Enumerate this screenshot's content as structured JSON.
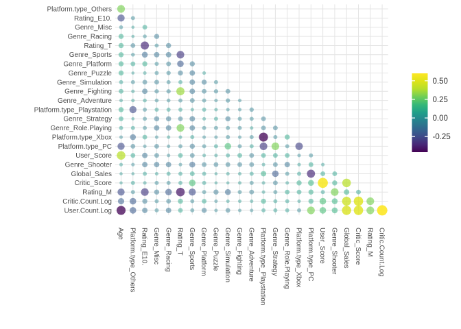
{
  "figure": {
    "background": "#ffffff",
    "title": ""
  },
  "chart_data": {
    "type": "heatmap",
    "subtype": "correlation-bubble-matrix",
    "triangle": "lower",
    "title": "",
    "xlabel": "",
    "ylabel": "",
    "grid": true,
    "legend_position": "right",
    "x_labels": [
      "Age",
      "Platform.type_Others",
      "Rating_E10.",
      "Genre_Misc",
      "Genre_Racing",
      "Rating_T",
      "Genre_Sports",
      "Genre_Platform",
      "Genre_Puzzle",
      "Genre_Simulation",
      "Genre_Fighting",
      "Genre_Adventure",
      "Platform.type_Playstation",
      "Genre_Strategy",
      "Genre_Role.Playing",
      "Platform.type_Xbox",
      "Platform.type_PC",
      "User_Score",
      "Genre_Shooter",
      "Global_Sales",
      "Critic_Score",
      "Rating_M",
      "Critic.Count.Log"
    ],
    "y_labels": [
      "Platform.type_Others",
      "Rating_E10.",
      "Genre_Misc",
      "Genre_Racing",
      "Rating_T",
      "Genre_Sports",
      "Genre_Platform",
      "Genre_Puzzle",
      "Genre_Simulation",
      "Genre_Fighting",
      "Genre_Adventure",
      "Platform.type_Playstation",
      "Genre_Strategy",
      "Genre_Role.Playing",
      "Platform.type_Xbox",
      "Platform.type_PC",
      "User_Score",
      "Genre_Shooter",
      "Global_Sales",
      "Critic_Score",
      "Rating_M",
      "Critic.Count.Log",
      "User.Count.Log"
    ],
    "matrix_rows": [
      [
        0.3
      ],
      [
        -0.25,
        -0.05
      ],
      [
        -0.04,
        0.02,
        0.08
      ],
      [
        0.1,
        0.02,
        -0.04,
        -0.1
      ],
      [
        0.1,
        -0.08,
        -0.35,
        -0.05,
        -0.1
      ],
      [
        0.1,
        -0.04,
        -0.15,
        -0.12,
        -0.12,
        -0.3
      ],
      [
        0.1,
        0.08,
        0.1,
        -0.05,
        -0.08,
        -0.2,
        -0.1
      ],
      [
        0.1,
        0.02,
        0.03,
        -0.05,
        -0.06,
        -0.1,
        -0.12,
        0.03
      ],
      [
        0.05,
        -0.05,
        -0.08,
        -0.08,
        -0.05,
        0.05,
        -0.12,
        -0.1,
        -0.05
      ],
      [
        0.08,
        0.03,
        -0.12,
        -0.06,
        -0.06,
        0.35,
        -0.12,
        -0.08,
        -0.06,
        -0.08
      ],
      [
        0.03,
        0.03,
        0.04,
        -0.04,
        -0.04,
        -0.05,
        -0.08,
        -0.05,
        -0.03,
        -0.06,
        -0.03
      ],
      [
        0.1,
        -0.25,
        -0.05,
        0.05,
        0.05,
        0.05,
        0.03,
        0.05,
        0.03,
        -0.03,
        -0.03,
        -0.06
      ],
      [
        0.08,
        0.02,
        -0.05,
        -0.1,
        -0.1,
        -0.08,
        -0.12,
        0.03,
        0.05,
        -0.1,
        -0.05,
        -0.05,
        -0.08
      ],
      [
        0.05,
        0.05,
        -0.05,
        -0.12,
        -0.12,
        0.3,
        -0.12,
        -0.05,
        -0.05,
        -0.05,
        -0.05,
        0.03,
        -0.08,
        -0.08
      ],
      [
        -0.03,
        -0.15,
        0.08,
        -0.03,
        0.03,
        0.03,
        0.05,
        -0.03,
        -0.03,
        -0.05,
        -0.03,
        -0.05,
        -0.45,
        -0.05,
        0.1
      ],
      [
        -0.25,
        -0.08,
        -0.03,
        -0.08,
        -0.03,
        -0.05,
        -0.1,
        -0.05,
        0.05,
        0.2,
        -0.05,
        0.05,
        -0.3,
        0.3,
        -0.05,
        -0.28
      ],
      [
        0.4,
        0.08,
        -0.12,
        -0.08,
        -0.03,
        0.08,
        -0.08,
        0.03,
        0.03,
        0.05,
        0.08,
        -0.08,
        0.08,
        0.08,
        0.08,
        -0.03,
        -0.05
      ],
      [
        0.03,
        -0.03,
        -0.12,
        -0.12,
        -0.12,
        -0.03,
        -0.15,
        -0.08,
        -0.08,
        -0.08,
        -0.08,
        -0.08,
        0.03,
        -0.08,
        -0.12,
        0.03,
        0.08,
        0.03
      ],
      [
        0.02,
        0.02,
        0.05,
        0.03,
        0.05,
        0.05,
        0.08,
        0.05,
        0.02,
        0.03,
        0.03,
        0.05,
        0.12,
        -0.2,
        -0.05,
        0.05,
        -0.35,
        0.08,
        0.08
      ],
      [
        0.02,
        0.05,
        0.03,
        -0.05,
        -0.05,
        0.05,
        0.2,
        0.05,
        0.02,
        0.02,
        0.03,
        -0.05,
        0.03,
        -0.08,
        0.03,
        0.1,
        0.15,
        0.58,
        0.1,
        0.4
      ],
      [
        -0.25,
        -0.05,
        -0.3,
        -0.1,
        -0.2,
        -0.4,
        -0.25,
        -0.05,
        -0.1,
        -0.15,
        -0.05,
        -0.08,
        0.03,
        -0.05,
        0.08,
        0.08,
        0.1,
        0.05,
        0.3,
        0.12,
        0.08
      ],
      [
        -0.18,
        -0.2,
        -0.1,
        -0.05,
        -0.08,
        0.1,
        -0.05,
        0.08,
        -0.03,
        0.03,
        0.03,
        0.03,
        0.1,
        0.05,
        0.05,
        0.03,
        0.1,
        0.2,
        0.15,
        0.45,
        0.5,
        0.3
      ],
      [
        -0.45,
        -0.2,
        -0.12,
        -0.05,
        -0.12,
        0.08,
        -0.05,
        -0.1,
        -0.03,
        -0.08,
        -0.03,
        -0.03,
        0.05,
        0.05,
        0.05,
        -0.05,
        0.3,
        0.2,
        0.15,
        0.48,
        0.5,
        0.3,
        0.62
      ]
    ],
    "color_scale": {
      "name": "viridis",
      "domain": [
        -0.46,
        0.6
      ],
      "legend_ticks": [
        {
          "label": "0.50",
          "value": 0.5
        },
        {
          "label": "0.25",
          "value": 0.25
        },
        {
          "label": "0.00",
          "value": 0.0
        },
        {
          "label": "-0.25",
          "value": -0.25
        }
      ]
    },
    "size_scale": {
      "encodes": "abs(correlation)",
      "max_abs": 0.62
    },
    "colors": {
      "gridline": "#e4e4e4",
      "axis_text": "#4d4d4d",
      "legend_text": "#333333",
      "viridis_stops": [
        "#440154",
        "#482878",
        "#3E4A89",
        "#31688E",
        "#26828E",
        "#1F9E89",
        "#35B779",
        "#6DCD59",
        "#B4DE2C",
        "#DDE318",
        "#FDE725"
      ]
    }
  }
}
